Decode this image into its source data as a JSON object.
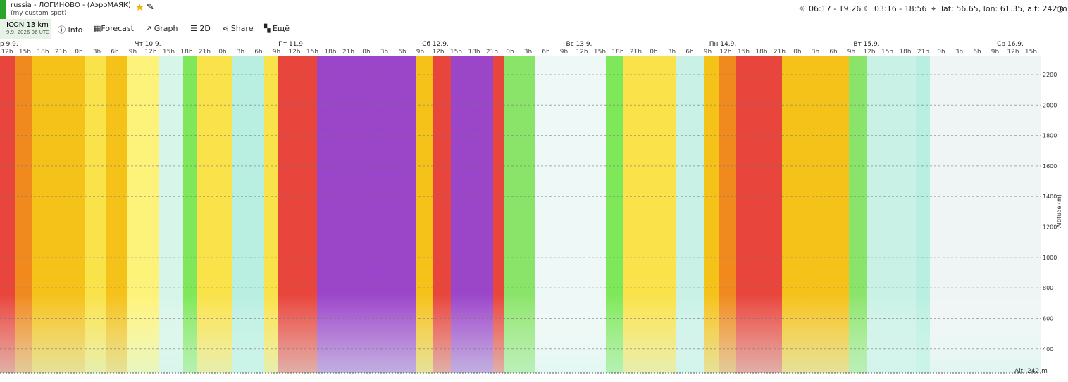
{
  "header": {
    "title": "russia - ЛОГИНОВО - (АэроМАЯК)",
    "subtitle": "(my custom spot)",
    "sun": "06:17 - 19:26",
    "moon": "03:16 - 18:56",
    "location": "lat: 56.65, lon: 61.35, alt: 242 m"
  },
  "toolbar": {
    "model": "ICON 13 km",
    "run": "9.9. 2026 06 UTC",
    "items": [
      "Info",
      "Forecast",
      "Graph",
      "2D",
      "Share",
      "Ещё"
    ]
  },
  "days": [
    "р 9.9.",
    "Чт 10.9.",
    "Пт 11.9.",
    "Сб 12.9.",
    "Вс 13.9.",
    "Пн 14.9.",
    "Вт 15.9.",
    "Ср 16.9."
  ],
  "hours": [
    "12h",
    "15h",
    "18h",
    "21h",
    "0h",
    "3h",
    "6h",
    "9h",
    "12h",
    "15h",
    "18h",
    "21h",
    "0h",
    "3h",
    "6h",
    "9h",
    "12h",
    "15h",
    "18h",
    "21h",
    "0h",
    "3h",
    "6h",
    "9h",
    "12h",
    "15h",
    "18h",
    "21h",
    "0h",
    "3h",
    "6h",
    "9h",
    "12h",
    "15h",
    "18h",
    "21h",
    "0h",
    "3h",
    "6h",
    "9h",
    "12h",
    "15h",
    "18h",
    "21h",
    "0h",
    "3h",
    "6h",
    "9h",
    "12h",
    "15h",
    "18h",
    "21h",
    "0h",
    "3h",
    "6h",
    "9h",
    "12h",
    "15h"
  ],
  "altitude_axis": {
    "label": "Altitude (m)",
    "ticks": [
      2200,
      2000,
      1800,
      1600,
      1400,
      1200,
      1000,
      800,
      600,
      400
    ],
    "lim": [
      242,
      2320
    ],
    "ground": "Alt: 242 m"
  }
}
